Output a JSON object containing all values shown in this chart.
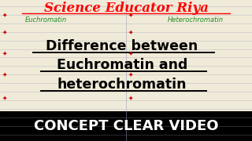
{
  "bg_color": "#c8b89a",
  "title_text": "Science Educator Riya",
  "title_color": "#ff0000",
  "left_label": "Euchromatin",
  "left_label_color": "#228B22",
  "right_label": "Heterochromatin",
  "right_label_color": "#228B22",
  "line1": "Difference between",
  "line2": "Euchromatin and",
  "line3": "heterochromatin",
  "main_text_color": "#000000",
  "bottom_text": "CONCEPT CLEAR VIDEO",
  "bottom_text_color": "#ffffff",
  "notebook_bg": "#f0ead8",
  "line_color": "#9999bb",
  "star_color": "#cc0000",
  "bottom_bar_color": "#000000"
}
